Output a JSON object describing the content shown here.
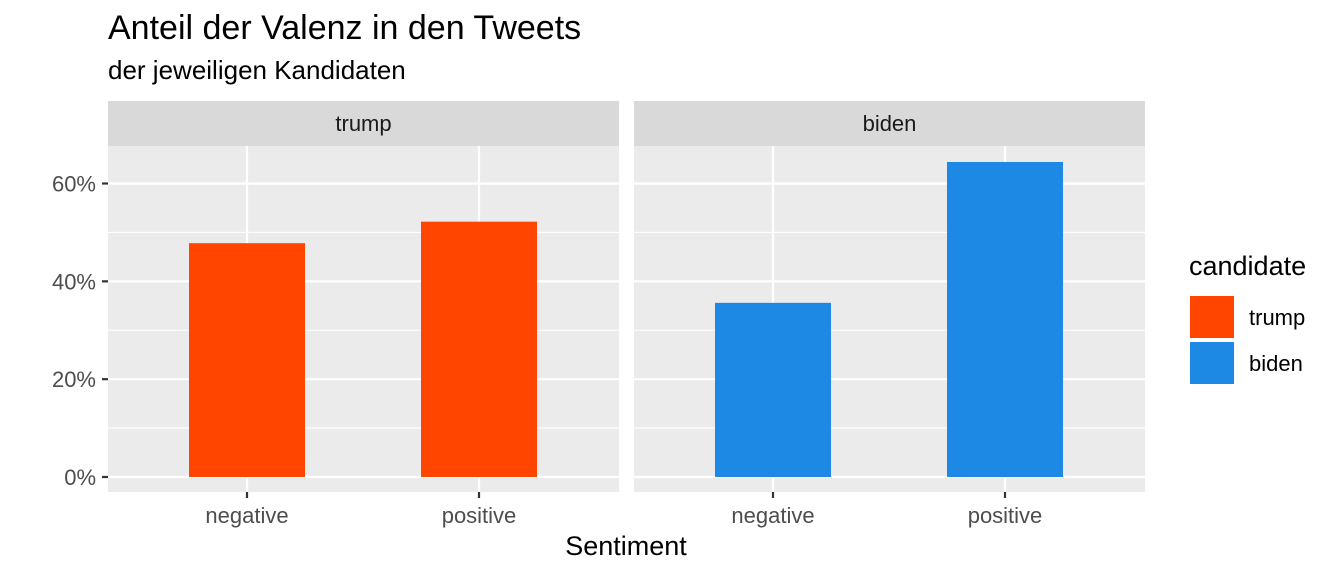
{
  "chart_data": {
    "type": "bar",
    "title": "Anteil der Valenz in den Tweets",
    "subtitle": "der jeweiligen Kandidaten",
    "xlabel": "Sentiment",
    "ylabel": "",
    "ylim": [
      0,
      0.7
    ],
    "yticks": [
      0,
      0.2,
      0.4,
      0.6
    ],
    "ytick_labels": [
      "0%",
      "20%",
      "40%",
      "60%"
    ],
    "categories": [
      "negative",
      "positive"
    ],
    "grid": true,
    "legend": {
      "title": "candidate",
      "placement": "right",
      "entries": [
        {
          "label": "trump",
          "color": "#FF4500"
        },
        {
          "label": "biden",
          "color": "#1E88E5"
        }
      ]
    },
    "facets": [
      {
        "label": "trump",
        "color": "#FF4500",
        "values": [
          0.478,
          0.522
        ]
      },
      {
        "label": "biden",
        "color": "#1E88E5",
        "values": [
          0.356,
          0.644
        ]
      }
    ]
  }
}
